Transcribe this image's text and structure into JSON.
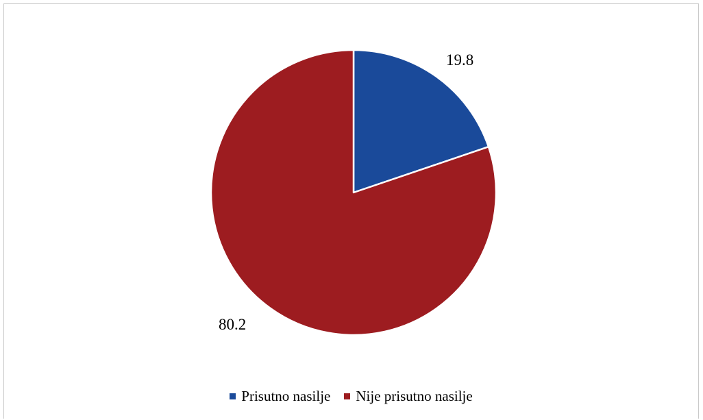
{
  "chart_data": {
    "type": "pie",
    "title": "",
    "slices": [
      {
        "label": "Prisutno nasilje",
        "value": 19.8,
        "display": "19.8",
        "color": "#1a4a9a"
      },
      {
        "label": "Nije prisutno nasilje",
        "value": 80.2,
        "display": "80.2",
        "color": "#9d1c20"
      }
    ],
    "legend_position": "bottom"
  }
}
